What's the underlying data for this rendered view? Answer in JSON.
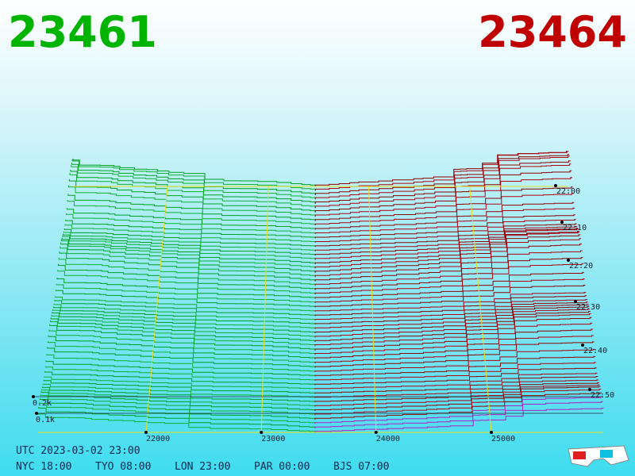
{
  "header": {
    "bid": "23461",
    "ask": "23464"
  },
  "price_labels": [
    "22000",
    "23000",
    "24000",
    "25000"
  ],
  "depth_labels": [
    "0.2k",
    "0.1k"
  ],
  "time_labels": [
    "22:00",
    "22:10",
    "22:20",
    "22:30",
    "22:40",
    "22:50"
  ],
  "footer": {
    "utc": "UTC 2023-03-02 23:00",
    "clocks": [
      "NYC 18:00",
      "TYO 08:00",
      "LON 23:00",
      "PAR 00:00",
      "BJS 07:00"
    ]
  }
}
